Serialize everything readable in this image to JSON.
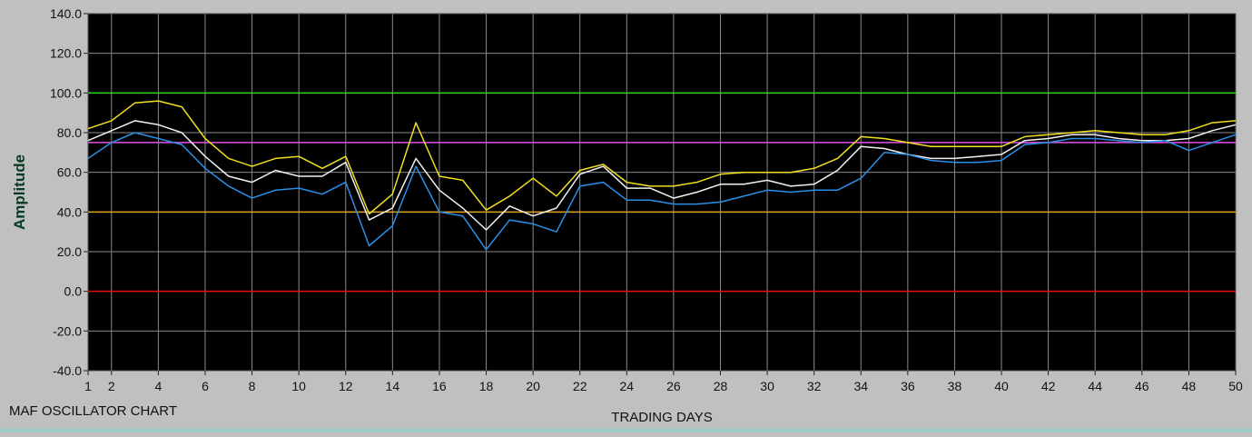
{
  "caption": "MAF OSCILLATOR CHART",
  "chart_data": {
    "type": "line",
    "title": "",
    "xlabel": "TRADING DAYS",
    "ylabel": "Amplitude",
    "xlim": [
      1,
      50
    ],
    "ylim": [
      -40,
      140
    ],
    "xticks": [
      1,
      2,
      4,
      6,
      8,
      10,
      12,
      14,
      16,
      18,
      20,
      22,
      24,
      26,
      28,
      30,
      32,
      34,
      36,
      38,
      40,
      42,
      44,
      46,
      48,
      50
    ],
    "yticks": [
      "-40.0",
      "-20.0",
      "0.0",
      "20.0",
      "40.0",
      "60.0",
      "80.0",
      "100.0",
      "120.0",
      "140.0"
    ],
    "grid": true,
    "background": "#000000",
    "gridColor": "#8a8a8a",
    "reference_lines": [
      {
        "y": 100,
        "color": "#2fd21f"
      },
      {
        "y": 75,
        "color": "#e050e8"
      },
      {
        "y": 40,
        "color": "#e0a020"
      },
      {
        "y": 0,
        "color": "#e41010"
      }
    ],
    "x": [
      1,
      2,
      3,
      4,
      5,
      6,
      7,
      8,
      9,
      10,
      11,
      12,
      13,
      14,
      15,
      16,
      17,
      18,
      19,
      20,
      21,
      22,
      23,
      24,
      25,
      26,
      27,
      28,
      29,
      30,
      31,
      32,
      33,
      34,
      35,
      36,
      37,
      38,
      39,
      40,
      41,
      42,
      43,
      44,
      45,
      46,
      47,
      48,
      49,
      50
    ],
    "series": [
      {
        "color": "#f0e020",
        "values": [
          82,
          86,
          95,
          96,
          93,
          77,
          67,
          63,
          67,
          68,
          62,
          68,
          39,
          49,
          85,
          58,
          56,
          41,
          48,
          57,
          48,
          61,
          64,
          55,
          53,
          53,
          55,
          59,
          60,
          60,
          60,
          62,
          67,
          78,
          77,
          75,
          73,
          73,
          73,
          73,
          78,
          79,
          80,
          81,
          80,
          79,
          79,
          81,
          85,
          86
        ]
      },
      {
        "color": "#f2f2f2",
        "values": [
          76,
          81,
          86,
          84,
          80,
          68,
          58,
          55,
          61,
          58,
          58,
          65,
          36,
          42,
          67,
          51,
          42,
          31,
          43,
          38,
          42,
          59,
          63,
          52,
          52,
          47,
          50,
          54,
          54,
          56,
          53,
          54,
          61,
          73,
          72,
          69,
          67,
          67,
          68,
          69,
          76,
          77,
          79,
          79,
          77,
          76,
          76,
          77,
          81,
          84
        ]
      },
      {
        "color": "#2a8fe8",
        "values": [
          67,
          75,
          80,
          77,
          74,
          62,
          53,
          47,
          51,
          52,
          49,
          55,
          23,
          33,
          63,
          40,
          38,
          21,
          36,
          34,
          30,
          53,
          55,
          46,
          46,
          44,
          44,
          45,
          48,
          51,
          50,
          51,
          51,
          57,
          70,
          69,
          66,
          65,
          65,
          66,
          74,
          75,
          77,
          77,
          76,
          75,
          76,
          71,
          75,
          79
        ]
      }
    ]
  }
}
